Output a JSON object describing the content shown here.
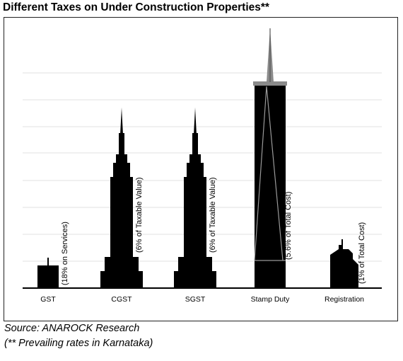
{
  "title": "Different Taxes on Under Construction Properties**",
  "footer": {
    "source": "Source: ANAROCK Research",
    "note": "(** Prevailing rates in Karnataka)"
  },
  "colors": {
    "building": "#000000",
    "spire_grey": "#8a8a8a",
    "grid": "#e2e2e2",
    "axis": "#000000"
  },
  "chart_data": {
    "type": "bar",
    "style": "pictogram (building silhouettes)",
    "title": "Different Taxes on Under Construction Properties**",
    "categories": [
      "GST",
      "CGST",
      "SGST",
      "Stamp Duty",
      "Registration"
    ],
    "values": [
      18,
      6,
      6,
      5.6,
      1
    ],
    "unit": "%",
    "value_labels": [
      "(18% on Services)",
      "(6% of Taxable Value)",
      "(6% of Taxable Value)",
      "(5.6% of Total Cost)",
      "(1% of Total Cost)"
    ],
    "xlabel": "",
    "ylabel": "",
    "grid": true,
    "legend": "none"
  }
}
